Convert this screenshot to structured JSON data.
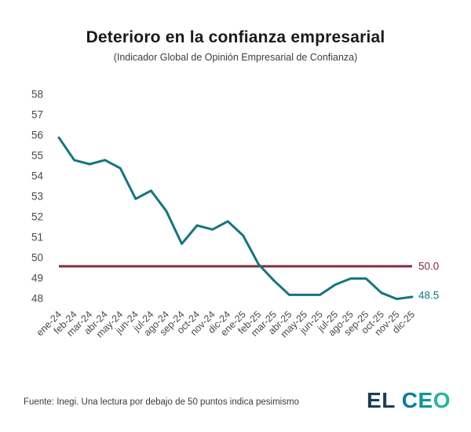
{
  "title": "Deterioro en la confianza empresarial",
  "subtitle": "(Indicador Global de Opinión Empresarial de Confianza)",
  "chart_data": {
    "type": "line",
    "x": [
      "ene-24",
      "feb-24",
      "mar-24",
      "abr-24",
      "may-24",
      "jun-24",
      "jul-24",
      "ago-24",
      "sep-24",
      "oct-24",
      "nov-24",
      "dic-24",
      "ene-25",
      "feb-25",
      "mar-25",
      "abr-25",
      "may-25",
      "jun-25",
      "jul-25",
      "ago-25",
      "sep-25",
      "oct-25",
      "nov-25",
      "dic-25"
    ],
    "series": [
      {
        "name": "Indicador Global de Opinión Empresarial de Confianza",
        "color": "#17747F",
        "values": [
          56.3,
          55.2,
          55.0,
          55.2,
          54.8,
          53.3,
          53.7,
          52.7,
          51.1,
          52.0,
          51.8,
          52.2,
          51.5,
          50.1,
          49.3,
          48.6,
          48.6,
          48.6,
          49.1,
          49.4,
          49.4,
          48.7,
          48.4,
          48.5
        ]
      }
    ],
    "reference_line": {
      "value": 50.0,
      "label": "50.0",
      "color": "#7E2D3C"
    },
    "end_label": {
      "text": "48.5",
      "color": "#17747F"
    },
    "ylim": [
      48,
      58
    ],
    "yticks": [
      58,
      57,
      56,
      55,
      54,
      53,
      52,
      51,
      50,
      49,
      48
    ],
    "grid": false,
    "legend": "none"
  },
  "footer": {
    "source": "Fuente: Inegi. Una lectura por debajo de 50 puntos indica pesimismo",
    "logo": {
      "el": "EL",
      "c": "C",
      "e": "E",
      "o": "O"
    }
  },
  "colors": {
    "line": "#17747F",
    "reference": "#7E2D3C",
    "title": "#1A1A1A",
    "subtitle": "#3D3D3D",
    "axis_labels": "#4A4A4A",
    "source": "#3A3A3A",
    "logo_el": "#1C3E53",
    "logo_c": "#0D7C99",
    "logo_e": "#10939B",
    "logo_o": "#2CB1A1",
    "background": "#FFFFFF"
  }
}
